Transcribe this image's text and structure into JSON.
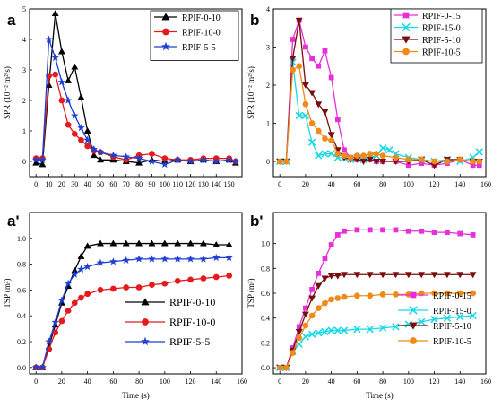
{
  "chart_data": [
    {
      "type": "line",
      "panel_label": "a",
      "xlabel": "",
      "ylabel": "SPR (10⁻² m²/s)",
      "xlim": [
        -5,
        160
      ],
      "ylim": [
        -0.5,
        5
      ],
      "xticks": [
        0,
        10,
        20,
        30,
        40,
        50,
        60,
        70,
        80,
        90,
        100,
        110,
        120,
        130,
        140,
        150
      ],
      "yticks": [
        0,
        1,
        2,
        3,
        4,
        5
      ],
      "legend_position": "top-right",
      "series": [
        {
          "name": "RPIF-0-10",
          "color": "#000000",
          "marker": "triangle",
          "x": [
            0,
            5,
            10,
            15,
            20,
            25,
            30,
            35,
            40,
            45,
            50,
            60,
            70,
            80,
            90,
            100,
            110,
            120,
            130,
            140,
            150,
            155
          ],
          "y": [
            -0.05,
            -0.1,
            2.5,
            4.85,
            3.6,
            2.65,
            3.1,
            2.1,
            1.0,
            0.2,
            0.05,
            0.05,
            0.0,
            -0.05,
            0.05,
            0.0,
            0.05,
            0.0,
            0.05,
            0.0,
            0.05,
            -0.05
          ]
        },
        {
          "name": "RPIF-10-0",
          "color": "#e41a1c",
          "marker": "circle",
          "x": [
            0,
            5,
            10,
            15,
            20,
            25,
            30,
            35,
            40,
            45,
            50,
            60,
            70,
            80,
            90,
            100,
            110,
            120,
            130,
            140,
            150,
            155
          ],
          "y": [
            0.1,
            0.1,
            2.8,
            2.85,
            2.0,
            1.2,
            0.9,
            0.7,
            0.5,
            0.35,
            0.3,
            0.15,
            0.05,
            0.2,
            0.25,
            0.1,
            0.05,
            0.05,
            0.1,
            0.1,
            0.1,
            0.0
          ]
        },
        {
          "name": "RPIF-5-5",
          "color": "#1f3fd1",
          "marker": "star",
          "x": [
            0,
            5,
            10,
            15,
            20,
            25,
            30,
            35,
            40,
            45,
            50,
            60,
            70,
            80,
            90,
            100,
            110,
            120,
            130,
            140,
            150,
            155
          ],
          "y": [
            0.05,
            0.05,
            4.0,
            3.4,
            2.6,
            2.0,
            1.5,
            1.1,
            0.7,
            0.4,
            0.3,
            0.2,
            0.15,
            0.1,
            0.0,
            -0.1,
            0.05,
            0.0,
            0.05,
            0.0,
            0.05,
            0.0
          ]
        }
      ]
    },
    {
      "type": "line",
      "panel_label": "b",
      "xlabel": "",
      "ylabel": "SPR (10⁻² m²/s)",
      "xlim": [
        -5,
        160
      ],
      "ylim": [
        -0.4,
        4
      ],
      "xticks": [
        0,
        20,
        40,
        60,
        80,
        100,
        120,
        140,
        160
      ],
      "yticks": [
        0,
        1,
        2,
        3,
        4
      ],
      "legend_position": "top-right",
      "series": [
        {
          "name": "RPIF-0-15",
          "color": "#e62fd8",
          "marker": "square",
          "x": [
            0,
            5,
            10,
            15,
            20,
            25,
            30,
            35,
            40,
            45,
            50,
            55,
            60,
            65,
            70,
            75,
            80,
            90,
            100,
            110,
            120,
            130,
            140,
            150,
            155
          ],
          "y": [
            0.0,
            0.0,
            3.2,
            3.7,
            3.0,
            2.7,
            2.5,
            2.9,
            2.2,
            1.1,
            0.3,
            0.1,
            0.05,
            0.1,
            0.05,
            0.0,
            0.0,
            0.0,
            -0.1,
            -0.05,
            -0.1,
            -0.05,
            0.05,
            -0.1,
            -0.1
          ]
        },
        {
          "name": "RPIF-15-0",
          "color": "#19d9e5",
          "marker": "cross",
          "x": [
            0,
            5,
            10,
            15,
            20,
            25,
            30,
            35,
            40,
            45,
            50,
            55,
            60,
            65,
            70,
            75,
            80,
            85,
            90,
            100,
            110,
            120,
            130,
            140,
            150,
            155
          ],
          "y": [
            0.0,
            0.0,
            2.6,
            1.2,
            1.2,
            0.5,
            0.15,
            0.2,
            0.2,
            0.1,
            0.1,
            0.05,
            0.1,
            0.05,
            0.1,
            0.15,
            0.35,
            0.3,
            0.2,
            0.1,
            0.05,
            0.0,
            0.05,
            0.0,
            0.1,
            0.25
          ]
        },
        {
          "name": "RPIF-5-10",
          "color": "#7a0d0d",
          "marker": "triangle-down",
          "x": [
            0,
            5,
            10,
            15,
            20,
            25,
            30,
            35,
            40,
            45,
            50,
            55,
            60,
            65,
            70,
            75,
            80,
            90,
            100,
            110,
            120,
            130,
            140,
            150,
            155
          ],
          "y": [
            0.0,
            0.0,
            2.7,
            3.7,
            2.0,
            1.8,
            1.5,
            1.3,
            0.7,
            0.3,
            0.1,
            0.05,
            0.05,
            0.0,
            0.05,
            0.0,
            0.0,
            0.0,
            0.0,
            0.05,
            -0.1,
            0.05,
            0.05,
            0.0,
            0.0
          ]
        },
        {
          "name": "RPIF-10-5",
          "color": "#ef8a1a",
          "marker": "circle",
          "x": [
            0,
            5,
            10,
            15,
            20,
            25,
            30,
            35,
            40,
            45,
            50,
            55,
            60,
            65,
            70,
            75,
            80,
            90,
            100,
            110,
            120,
            130,
            140,
            150,
            155
          ],
          "y": [
            0.0,
            0.0,
            2.4,
            2.5,
            1.5,
            1.0,
            0.8,
            0.6,
            0.55,
            0.2,
            0.15,
            0.1,
            0.15,
            0.15,
            0.2,
            0.2,
            0.15,
            0.1,
            0.05,
            0.05,
            0.0,
            0.0,
            0.05,
            0.0,
            0.0
          ]
        }
      ]
    },
    {
      "type": "line",
      "panel_label": "a'",
      "xlabel": "Time (s)",
      "ylabel": "TSP (m²)",
      "xlim": [
        -5,
        160
      ],
      "ylim": [
        -0.05,
        1.2
      ],
      "xticks": [
        0,
        20,
        40,
        60,
        80,
        100,
        120,
        140,
        160
      ],
      "yticks": [
        0.0,
        0.2,
        0.4,
        0.6,
        0.8,
        1.0
      ],
      "legend_position": "bottom-right",
      "series": [
        {
          "name": "RPIF-0-10",
          "color": "#000000",
          "marker": "triangle",
          "x": [
            0,
            5,
            10,
            15,
            20,
            25,
            30,
            35,
            40,
            50,
            60,
            70,
            80,
            90,
            100,
            110,
            120,
            130,
            140,
            150
          ],
          "y": [
            0.0,
            0.0,
            0.16,
            0.33,
            0.5,
            0.63,
            0.75,
            0.86,
            0.94,
            0.96,
            0.96,
            0.96,
            0.96,
            0.96,
            0.96,
            0.96,
            0.96,
            0.96,
            0.95,
            0.95
          ]
        },
        {
          "name": "RPIF-10-0",
          "color": "#e41a1c",
          "marker": "circle",
          "x": [
            0,
            5,
            10,
            15,
            20,
            25,
            30,
            35,
            40,
            50,
            60,
            70,
            80,
            90,
            100,
            110,
            120,
            130,
            140,
            150
          ],
          "y": [
            0.0,
            0.0,
            0.14,
            0.27,
            0.36,
            0.44,
            0.5,
            0.54,
            0.57,
            0.6,
            0.61,
            0.62,
            0.62,
            0.64,
            0.65,
            0.67,
            0.68,
            0.69,
            0.7,
            0.71
          ]
        },
        {
          "name": "RPIF-5-5",
          "color": "#1f3fd1",
          "marker": "star",
          "x": [
            0,
            5,
            10,
            15,
            20,
            25,
            30,
            35,
            40,
            50,
            60,
            70,
            80,
            90,
            100,
            110,
            120,
            130,
            140,
            150
          ],
          "y": [
            0.0,
            0.0,
            0.2,
            0.35,
            0.52,
            0.65,
            0.72,
            0.76,
            0.78,
            0.81,
            0.82,
            0.83,
            0.84,
            0.84,
            0.84,
            0.84,
            0.84,
            0.84,
            0.85,
            0.85
          ]
        }
      ]
    },
    {
      "type": "line",
      "panel_label": "b'",
      "xlabel": "Time (s)",
      "ylabel": "TSP (m²)",
      "xlim": [
        -5,
        160
      ],
      "ylim": [
        -0.05,
        1.25
      ],
      "xticks": [
        0,
        20,
        40,
        60,
        80,
        100,
        120,
        140,
        160
      ],
      "yticks": [
        0.0,
        0.2,
        0.4,
        0.6,
        0.8,
        1.0
      ],
      "legend_position": "bottom-right",
      "series": [
        {
          "name": "RPIF-0-15",
          "color": "#e62fd8",
          "marker": "square",
          "x": [
            0,
            5,
            10,
            15,
            20,
            25,
            30,
            35,
            40,
            45,
            50,
            60,
            70,
            80,
            90,
            100,
            110,
            120,
            130,
            140,
            150
          ],
          "y": [
            0.0,
            0.0,
            0.16,
            0.33,
            0.48,
            0.63,
            0.76,
            0.88,
            0.99,
            1.07,
            1.1,
            1.11,
            1.11,
            1.11,
            1.11,
            1.1,
            1.1,
            1.09,
            1.09,
            1.08,
            1.07
          ]
        },
        {
          "name": "RPIF-15-0",
          "color": "#19d9e5",
          "marker": "cross",
          "x": [
            0,
            5,
            10,
            15,
            20,
            25,
            30,
            35,
            40,
            45,
            50,
            60,
            70,
            80,
            90,
            100,
            110,
            120,
            130,
            140,
            150
          ],
          "y": [
            0.0,
            0.0,
            0.13,
            0.19,
            0.25,
            0.27,
            0.28,
            0.29,
            0.3,
            0.3,
            0.3,
            0.31,
            0.31,
            0.32,
            0.33,
            0.35,
            0.37,
            0.39,
            0.4,
            0.41,
            0.42
          ]
        },
        {
          "name": "RPIF-5-10",
          "color": "#7a0d0d",
          "marker": "triangle-down",
          "x": [
            0,
            5,
            10,
            15,
            20,
            25,
            30,
            35,
            40,
            45,
            50,
            60,
            70,
            80,
            90,
            100,
            110,
            120,
            130,
            140,
            150
          ],
          "y": [
            0.0,
            0.0,
            0.14,
            0.29,
            0.43,
            0.56,
            0.66,
            0.72,
            0.74,
            0.74,
            0.75,
            0.75,
            0.75,
            0.75,
            0.75,
            0.75,
            0.75,
            0.75,
            0.75,
            0.75,
            0.75
          ]
        },
        {
          "name": "RPIF-10-5",
          "color": "#ef8a1a",
          "marker": "circle",
          "x": [
            0,
            5,
            10,
            15,
            20,
            25,
            30,
            35,
            40,
            45,
            50,
            60,
            70,
            80,
            90,
            100,
            110,
            120,
            130,
            140,
            150
          ],
          "y": [
            0.0,
            0.0,
            0.12,
            0.24,
            0.34,
            0.42,
            0.48,
            0.52,
            0.55,
            0.56,
            0.57,
            0.58,
            0.58,
            0.59,
            0.59,
            0.59,
            0.6,
            0.6,
            0.6,
            0.6,
            0.6
          ]
        }
      ]
    }
  ]
}
